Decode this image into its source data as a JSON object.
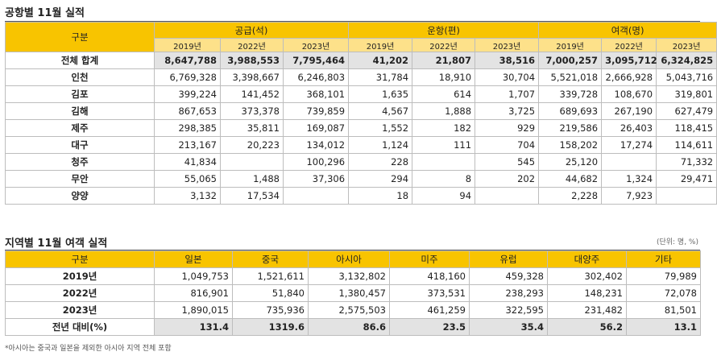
{
  "section1": {
    "title": "공항별 11월 실적",
    "corner": "구분",
    "groups": [
      "공급(석)",
      "운항(편)",
      "여객(명)"
    ],
    "years": [
      "2019년",
      "2022년",
      "2023년"
    ],
    "rows": [
      {
        "label": "전체 합계",
        "values": [
          "8,647,788",
          "3,988,553",
          "7,795,464",
          "41,202",
          "21,807",
          "38,516",
          "7,000,257",
          "3,095,712",
          "6,324,825"
        ]
      },
      {
        "label": "인천",
        "values": [
          "6,769,328",
          "3,398,667",
          "6,246,803",
          "31,784",
          "18,910",
          "30,704",
          "5,521,018",
          "2,666,928",
          "5,043,716"
        ]
      },
      {
        "label": "김포",
        "values": [
          "399,224",
          "141,452",
          "368,101",
          "1,635",
          "614",
          "1,707",
          "339,728",
          "108,670",
          "319,801"
        ]
      },
      {
        "label": "김해",
        "values": [
          "867,653",
          "373,378",
          "739,859",
          "4,567",
          "1,888",
          "3,725",
          "689,693",
          "267,190",
          "627,479"
        ]
      },
      {
        "label": "제주",
        "values": [
          "298,385",
          "35,811",
          "169,087",
          "1,552",
          "182",
          "929",
          "219,586",
          "26,403",
          "118,415"
        ]
      },
      {
        "label": "대구",
        "values": [
          "213,167",
          "20,223",
          "134,012",
          "1,124",
          "111",
          "704",
          "158,202",
          "17,274",
          "114,611"
        ]
      },
      {
        "label": "청주",
        "values": [
          "41,834",
          "",
          "100,296",
          "228",
          "",
          "545",
          "25,120",
          "",
          "71,332"
        ]
      },
      {
        "label": "무안",
        "values": [
          "55,065",
          "1,488",
          "37,306",
          "294",
          "8",
          "202",
          "44,682",
          "1,324",
          "29,471"
        ]
      },
      {
        "label": "양양",
        "values": [
          "3,132",
          "17,534",
          "",
          "18",
          "94",
          "",
          "2,228",
          "7,923",
          ""
        ]
      }
    ]
  },
  "section2": {
    "title": "지역별 11월 여객 실적",
    "unit": "(단위: 명, %)",
    "corner": "구분",
    "columns": [
      "일본",
      "중국",
      "아시아",
      "미주",
      "유럽",
      "대양주",
      "기타"
    ],
    "rows": [
      {
        "label": "2019년",
        "values": [
          "1,049,753",
          "1,521,611",
          "3,132,802",
          "418,160",
          "459,328",
          "302,402",
          "79,989"
        ]
      },
      {
        "label": "2022년",
        "values": [
          "816,901",
          "51,840",
          "1,380,457",
          "373,531",
          "238,293",
          "148,231",
          "72,078"
        ]
      },
      {
        "label": "2023년",
        "values": [
          "1,890,015",
          "735,936",
          "2,575,503",
          "461,259",
          "322,595",
          "231,482",
          "81,501"
        ]
      },
      {
        "label": "전년 대비(%)",
        "values": [
          "131.4",
          "1319.6",
          "86.6",
          "23.5",
          "35.4",
          "56.2",
          "13.1"
        ]
      }
    ],
    "note": "*아시아는 중국과 일본을 제외한 아시아 지역 전체 포함"
  }
}
